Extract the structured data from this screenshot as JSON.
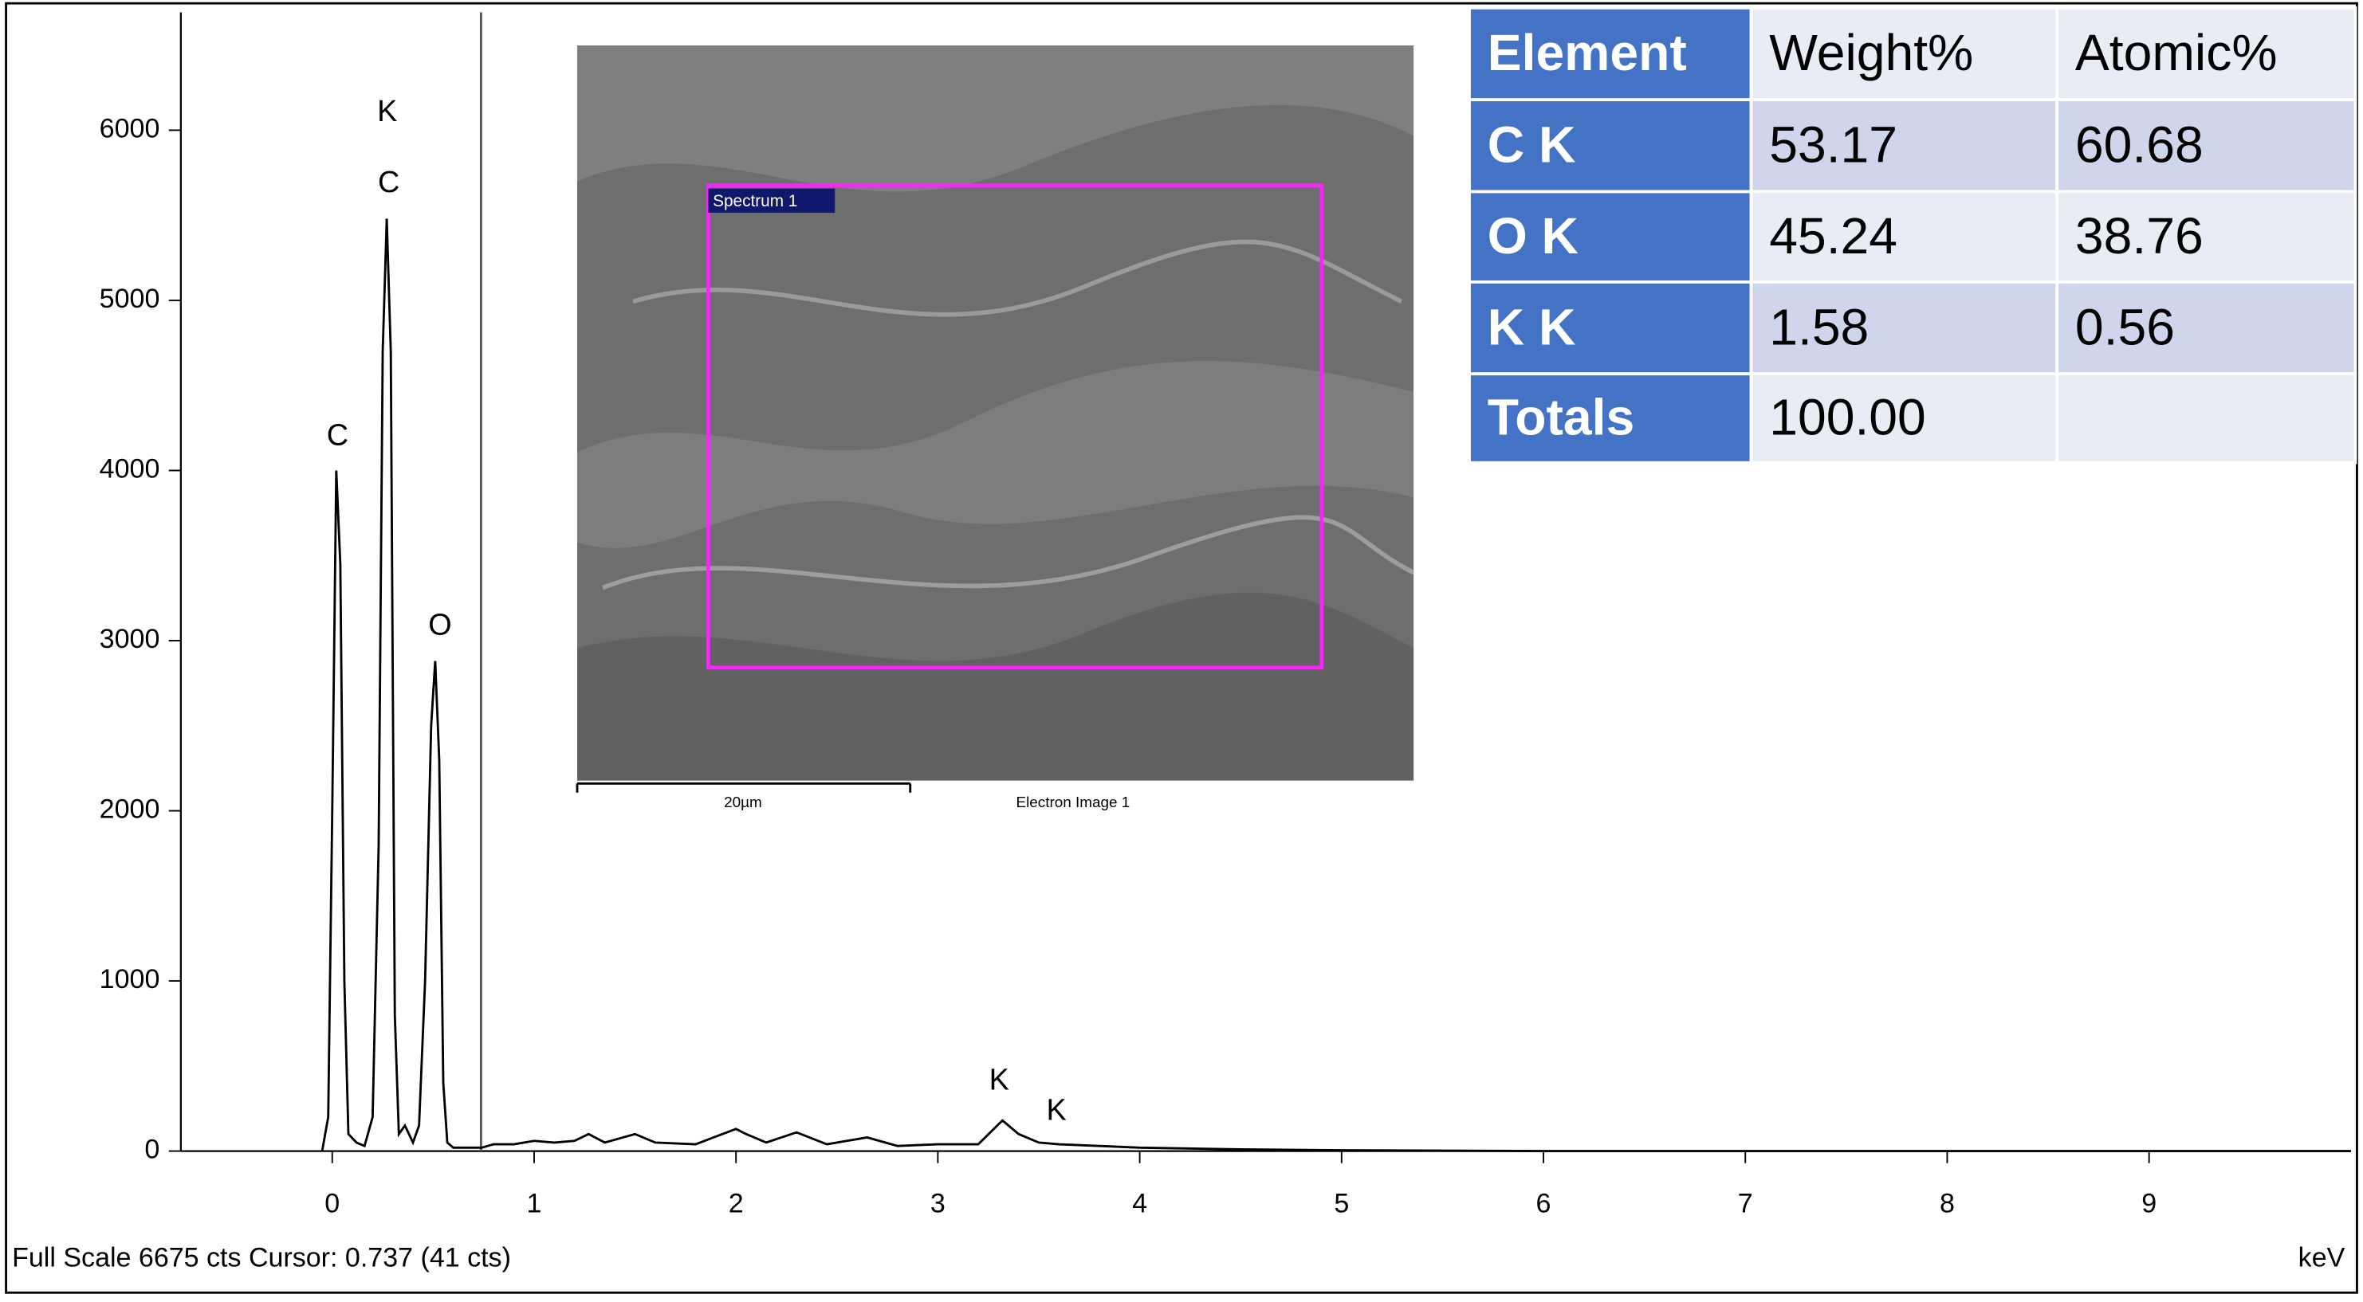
{
  "chart_data": {
    "type": "line",
    "x": [
      -0.05,
      -0.02,
      0.0,
      0.02,
      0.04,
      0.06,
      0.08,
      0.12,
      0.16,
      0.2,
      0.23,
      0.25,
      0.27,
      0.29,
      0.31,
      0.33,
      0.36,
      0.4,
      0.43,
      0.46,
      0.49,
      0.51,
      0.53,
      0.55,
      0.57,
      0.6,
      0.65,
      0.74,
      0.8,
      0.9,
      1.0,
      1.1,
      1.2,
      1.27,
      1.35,
      1.5,
      1.6,
      1.8,
      2.0,
      2.05,
      2.15,
      2.3,
      2.45,
      2.65,
      2.8,
      3.0,
      3.2,
      3.32,
      3.4,
      3.5,
      3.6,
      3.8,
      4.0,
      4.5,
      5.0,
      6,
      7,
      8,
      9,
      10
    ],
    "values": [
      0,
      200,
      2000,
      4000,
      3450,
      1000,
      100,
      50,
      30,
      200,
      1800,
      4700,
      5480,
      4700,
      800,
      100,
      150,
      50,
      150,
      1000,
      2500,
      2880,
      2300,
      400,
      50,
      20,
      20,
      20,
      40,
      40,
      60,
      50,
      60,
      100,
      50,
      100,
      50,
      40,
      130,
      100,
      50,
      110,
      40,
      80,
      30,
      40,
      40,
      180,
      100,
      50,
      40,
      30,
      20,
      10,
      5,
      0,
      0,
      0,
      0,
      0
    ],
    "color": "#000000",
    "xlim": [
      -0.75,
      10
    ],
    "xticks": [
      0,
      1,
      2,
      3,
      4,
      5,
      6,
      7,
      8,
      9
    ],
    "ylim": [
      0,
      6675
    ],
    "yticks": [
      0,
      1000,
      2000,
      3000,
      4000,
      5000,
      6000
    ],
    "x_label": "keV",
    "cursor": 0.737,
    "status": "Full Scale 6675 cts Cursor: 0.737  (41 cts)",
    "peak_labels": [
      "C",
      "K",
      "C",
      "O",
      "K",
      "K"
    ]
  },
  "inset": {
    "marker": "Spectrum 1",
    "scale": "20µm",
    "caption": "Electron Image 1"
  },
  "table": {
    "header": [
      "Element",
      "Weight%",
      "Atomic%"
    ],
    "rows": [
      [
        "C K",
        "53.17",
        "60.68"
      ],
      [
        "O K",
        "45.24",
        "38.76"
      ],
      [
        "K K",
        "1.58",
        "0.56"
      ],
      [
        "Totals",
        "100.00",
        null
      ]
    ]
  }
}
